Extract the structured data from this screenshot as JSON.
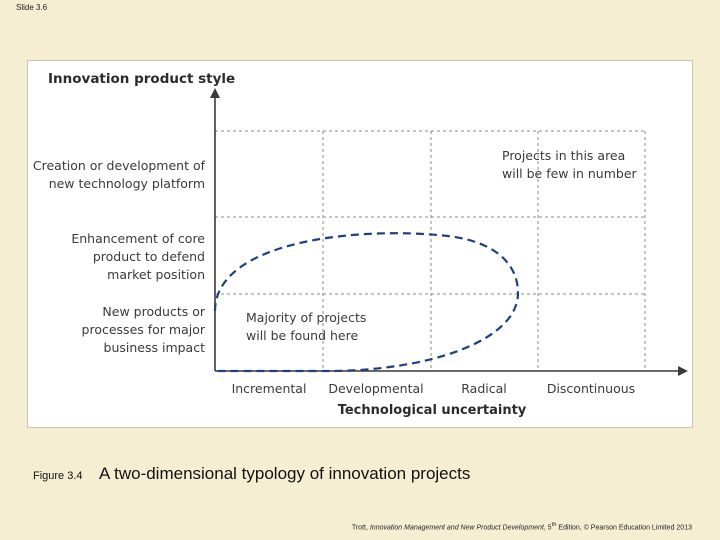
{
  "slide": {
    "number": "Slide 3.6"
  },
  "diagram": {
    "title": "Innovation product style",
    "x_axis_title": "Technological uncertainty",
    "y_levels": [
      {
        "lines": [
          "New products or",
          "processes for major",
          "business impact"
        ]
      },
      {
        "lines": [
          "Enhancement of core",
          "product to defend",
          "market position"
        ]
      },
      {
        "lines": [
          "Creation or development of",
          "new technology platform"
        ]
      }
    ],
    "x_levels": [
      "Incremental",
      "Developmental",
      "Radical",
      "Discontinuous"
    ],
    "annotations": {
      "top_right": [
        "Projects in this area",
        "will be few in number"
      ],
      "ellipse": [
        "Majority of projects",
        "will be found here"
      ]
    }
  },
  "caption": {
    "figure_number": "Figure 3.4",
    "title": "A two-dimensional typology of innovation projects"
  },
  "footer": {
    "author": "Trott, ",
    "book": "Innovation Management and New Product Development",
    "edition_pre": ", 5",
    "edition_sup": "th",
    "rest": " Edition, © Pearson Education Limited 2013"
  }
}
